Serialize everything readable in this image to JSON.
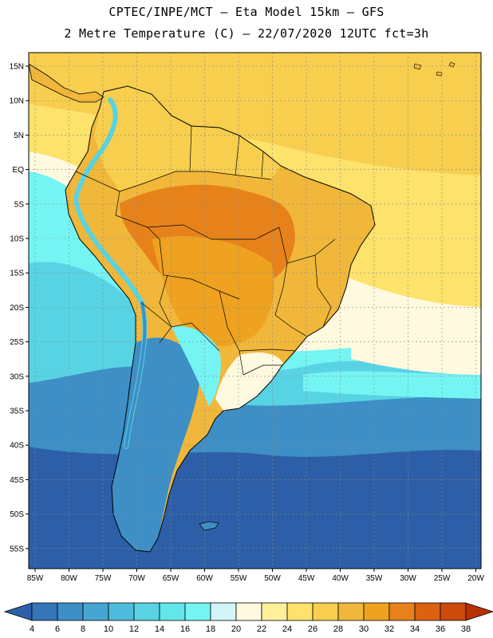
{
  "title_line1": "CPTEC/INPE/MCT –  Eta Model 15km – GFS",
  "title_line2": "2 Metre Temperature (C) – 22/07/2020 12UTC fct=3h",
  "lat_labels": [
    "15N",
    "10N",
    "5N",
    "EQ",
    "5S",
    "10S",
    "15S",
    "20S",
    "25S",
    "30S",
    "35S",
    "40S",
    "45S",
    "50S",
    "55S"
  ],
  "lon_labels": [
    "85W",
    "80W",
    "75W",
    "70W",
    "65W",
    "60W",
    "55W",
    "50W",
    "45W",
    "40W",
    "35W",
    "30W",
    "25W",
    "20W"
  ],
  "colorbar": {
    "labels": [
      "4",
      "6",
      "8",
      "10",
      "12",
      "14",
      "16",
      "18",
      "20",
      "22",
      "24",
      "26",
      "28",
      "30",
      "32",
      "34",
      "36",
      "38"
    ],
    "colors": [
      "#2d5fa8",
      "#3576b8",
      "#3d8fc6",
      "#45a6d2",
      "#4dbcdc",
      "#58d3e4",
      "#62e6ec",
      "#75f4f4",
      "#d2f5f8",
      "#fff9df",
      "#fff09a",
      "#fde26c",
      "#f7ce4e",
      "#f0b73a",
      "#eea21f",
      "#e7821a",
      "#dc6212",
      "#cc4a0a",
      "#b83200"
    ]
  },
  "colors": {
    "ocean_deep": "#2d5fa8",
    "ocean_cold": "#3d8fc6",
    "ocean_cool": "#58d3e4",
    "ocean_mild": "#75f4f4",
    "ocean_pale": "#fff9df",
    "ocean_warm": "#fde26c",
    "ocean_tropical": "#f7ce4e",
    "land_hot": "#eea21f",
    "land_very_hot": "#e7821a",
    "land_warm": "#f7ce4e",
    "andes_cold": "#3d8fc6"
  }
}
